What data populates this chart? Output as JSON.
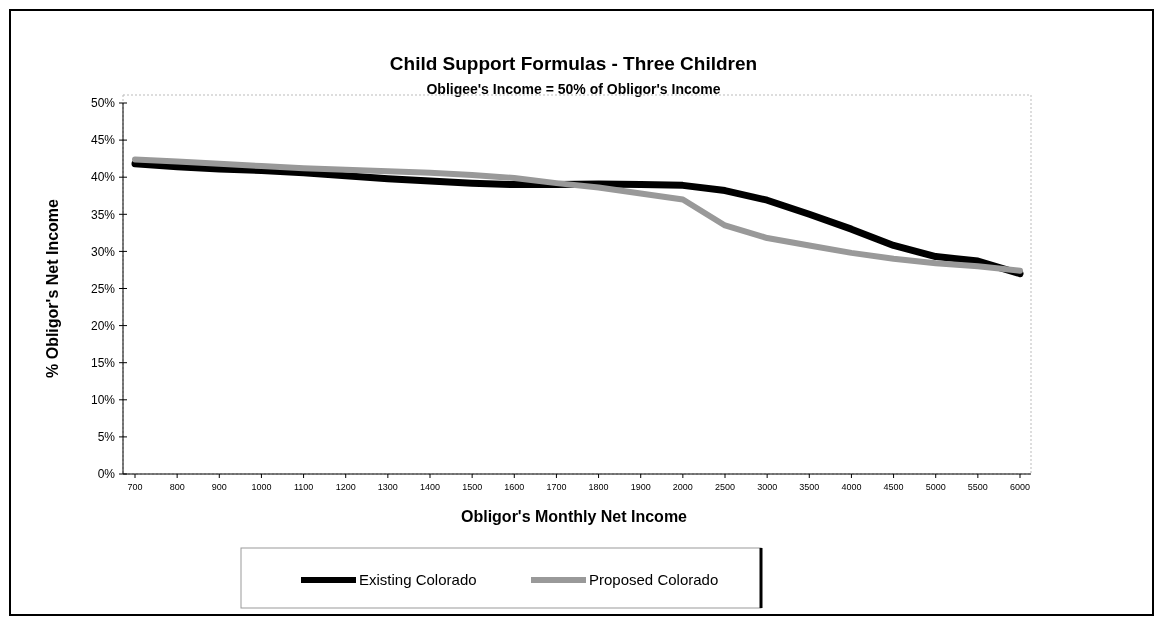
{
  "chart_data": {
    "type": "line",
    "title": "Child Support Formulas - Three Children",
    "subtitle": "Obligee's Income = 50% of Obligor's Income",
    "xlabel": "Obligor's Monthly Net Income",
    "ylabel": "% Obligor's Net Income",
    "categories": [
      "700",
      "800",
      "900",
      "1000",
      "1100",
      "1200",
      "1300",
      "1400",
      "1500",
      "1600",
      "1700",
      "1800",
      "1900",
      "2000",
      "2500",
      "3000",
      "3500",
      "4000",
      "4500",
      "5000",
      "5500",
      "6000"
    ],
    "series": [
      {
        "name": "Existing Colorado",
        "color": "#000000",
        "values": [
          41.8,
          41.4,
          41.1,
          40.9,
          40.6,
          40.2,
          39.8,
          39.5,
          39.2,
          39.0,
          39.0,
          39.1,
          39.0,
          38.9,
          38.2,
          36.9,
          35.0,
          33.0,
          30.8,
          29.3,
          28.7,
          27.0
        ]
      },
      {
        "name": "Proposed Colorado",
        "color": "#999999",
        "values": [
          42.4,
          42.1,
          41.8,
          41.5,
          41.2,
          41.0,
          40.8,
          40.6,
          40.3,
          39.9,
          39.2,
          38.6,
          37.8,
          37.0,
          33.5,
          31.8,
          30.8,
          29.8,
          29.0,
          28.4,
          28.0,
          27.4
        ]
      }
    ],
    "ylim": [
      0,
      50
    ],
    "yticks": [
      {
        "value": 0,
        "label": "0%"
      },
      {
        "value": 5,
        "label": "5%"
      },
      {
        "value": 10,
        "label": "10%"
      },
      {
        "value": 15,
        "label": "15%"
      },
      {
        "value": 20,
        "label": "20%"
      },
      {
        "value": 25,
        "label": "25%"
      },
      {
        "value": 30,
        "label": "30%"
      },
      {
        "value": 35,
        "label": "35%"
      },
      {
        "value": 40,
        "label": "40%"
      },
      {
        "value": 45,
        "label": "45%"
      },
      {
        "value": 50,
        "label": "50%"
      }
    ],
    "legend": "bottom",
    "marker": "none",
    "line_style": "solid"
  }
}
